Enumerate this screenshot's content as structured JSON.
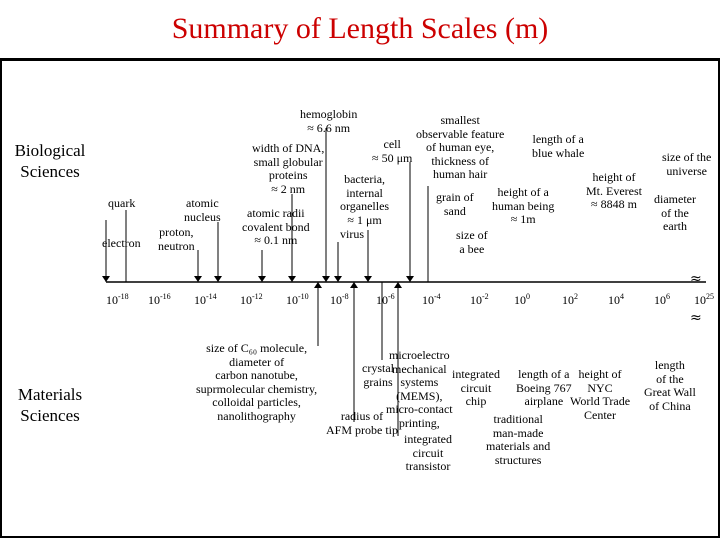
{
  "title": "Summary of Length Scales (m)",
  "sections": {
    "biological": "Biological\nSciences",
    "materials": "Materials\nSciences"
  },
  "bio_labels": [
    {
      "id": "electron",
      "text": "electron"
    },
    {
      "id": "quark",
      "text": "quark"
    },
    {
      "id": "proton",
      "text": "proton,\nneutron"
    },
    {
      "id": "atomic-nucleus",
      "text": "atomic\nnucleus"
    },
    {
      "id": "atomic-radii",
      "text": "atomic radii\ncovalent bond\n≈ 0.1 nm"
    },
    {
      "id": "dna",
      "text": "width of DNA,\nsmall globular\nproteins\n≈ 2 nm"
    },
    {
      "id": "hemoglobin",
      "text": "hemoglobin\n≈ 6.6 nm"
    },
    {
      "id": "virus",
      "text": "virus"
    },
    {
      "id": "bacteria",
      "text": "bacteria,\ninternal\norganelles\n≈ 1 μm"
    },
    {
      "id": "cell",
      "text": "cell\n≈ 50 μm"
    },
    {
      "id": "smallest-feature",
      "text": "smallest\nobservable feature\nof human eye,\nthickness of\nhuman hair"
    },
    {
      "id": "sand",
      "text": "grain of\nsand"
    },
    {
      "id": "bee",
      "text": "size of\na bee"
    },
    {
      "id": "human",
      "text": "height of a\nhuman being\n≈ 1m"
    },
    {
      "id": "whale",
      "text": "length of a\nblue whale"
    },
    {
      "id": "everest",
      "text": "height of\nMt. Everest\n≈ 8848 m"
    },
    {
      "id": "earth",
      "text": "diameter\nof the\nearth"
    },
    {
      "id": "universe",
      "text": "size of the\nuniverse"
    }
  ],
  "axis_ticks": [
    {
      "base": "10",
      "exp": "-18"
    },
    {
      "base": "10",
      "exp": "-16"
    },
    {
      "base": "10",
      "exp": "-14"
    },
    {
      "base": "10",
      "exp": "-12"
    },
    {
      "base": "10",
      "exp": "-10"
    },
    {
      "base": "10",
      "exp": "-8"
    },
    {
      "base": "10",
      "exp": "-6"
    },
    {
      "base": "10",
      "exp": "-4"
    },
    {
      "base": "10",
      "exp": "-2"
    },
    {
      "base": "10",
      "exp": "0"
    },
    {
      "base": "10",
      "exp": "2"
    },
    {
      "base": "10",
      "exp": "4"
    },
    {
      "base": "10",
      "exp": "6"
    },
    {
      "base": "10",
      "exp": "25"
    }
  ],
  "break_mark": "≈",
  "mat_labels": [
    {
      "id": "c60",
      "text": "size of C₆₀ molecule,\ndiameter of\ncarbon nanotube,\nsuprmolecular chemistry,\ncolloidal particles,\nnanolithography"
    },
    {
      "id": "mems",
      "text": "microelectro\nmechanical\nsystems\n(MEMS),\nmicro-contact\nprinting,"
    },
    {
      "id": "crystal",
      "text": "crystal\ngrains"
    },
    {
      "id": "afm",
      "text": "radius of\nAFM probe tip"
    },
    {
      "id": "ic-chip",
      "text": "integrated\ncircuit\nchip"
    },
    {
      "id": "ic-transistor",
      "text": "integrated\ncircuit\ntransistor"
    },
    {
      "id": "traditional",
      "text": "traditional\nman-made\nmaterials and\nstructures"
    },
    {
      "id": "boeing",
      "text": "length of a\nBoeing 767\nairplane"
    },
    {
      "id": "nyc",
      "text": "height of\nNYC\nWorld Trade\nCenter"
    },
    {
      "id": "china",
      "text": "length\nof the\nGreat Wall\nof China"
    }
  ]
}
